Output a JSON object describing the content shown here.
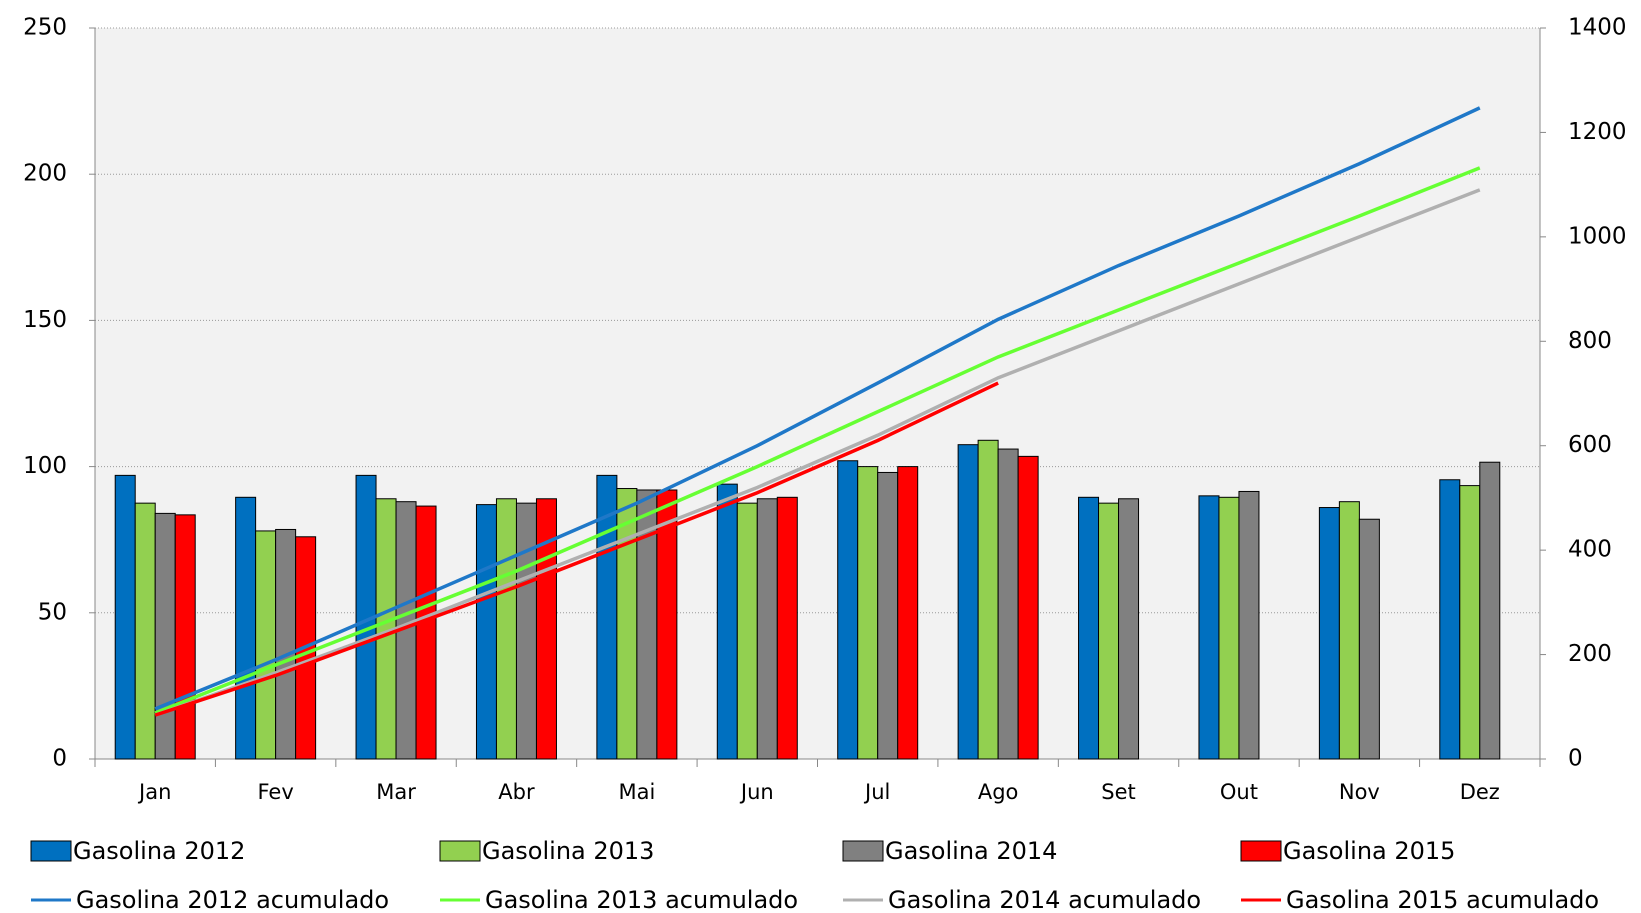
{
  "chart_data": {
    "type": "bar",
    "categories": [
      "Jan",
      "Fev",
      "Mar",
      "Abr",
      "Mai",
      "Jun",
      "Jul",
      "Ago",
      "Set",
      "Out",
      "Nov",
      "Dez"
    ],
    "ylim": [
      0,
      250
    ],
    "yticks": [
      0,
      50,
      100,
      150,
      200,
      250
    ],
    "y2lim": [
      0,
      1400
    ],
    "y2ticks": [
      0,
      200,
      400,
      600,
      800,
      1000,
      1200,
      1400
    ],
    "grid": true,
    "series": [
      {
        "name": "Gasolina 2012",
        "type": "bar",
        "color": "#0070c0",
        "values": [
          97,
          89.5,
          97,
          87,
          97,
          94,
          102,
          107.5,
          89.5,
          90,
          86,
          95.5
        ]
      },
      {
        "name": "Gasolina 2013",
        "type": "bar",
        "color": "#92d050",
        "values": [
          87.5,
          78,
          89,
          89,
          92.5,
          87.5,
          100,
          109,
          87.5,
          89.5,
          88,
          93.5
        ]
      },
      {
        "name": "Gasolina 2014",
        "type": "bar",
        "color": "#808080",
        "values": [
          84,
          78.5,
          88,
          87.5,
          92,
          89,
          98,
          106,
          89,
          91.5,
          82,
          101.5
        ]
      },
      {
        "name": "Gasolina 2015",
        "type": "bar",
        "color": "#ff0000",
        "values": [
          83.5,
          76,
          86.5,
          89,
          92,
          89.5,
          100,
          103.5,
          null,
          null,
          null,
          null
        ]
      },
      {
        "name": "Gasolina 2012 acumulado",
        "type": "line",
        "axis": "y2",
        "color": "#1f78c8",
        "values": [
          96,
          190,
          290,
          390,
          490,
          600,
          720,
          842,
          945,
          1040,
          1140,
          1247
        ]
      },
      {
        "name": "Gasolina 2013 acumulado",
        "type": "line",
        "axis": "y2",
        "color": "#66ff33",
        "values": [
          88,
          180,
          270,
          360,
          460,
          560,
          665,
          770,
          860,
          950,
          1040,
          1132
        ]
      },
      {
        "name": "Gasolina 2014 acumulado",
        "type": "line",
        "axis": "y2",
        "color": "#b0b0b0",
        "values": [
          84,
          165,
          250,
          340,
          430,
          520,
          620,
          730,
          820,
          910,
          1000,
          1090
        ]
      },
      {
        "name": "Gasolina 2015 acumulado",
        "type": "line",
        "axis": "y2",
        "color": "#ff0000",
        "values": [
          84,
          160,
          245,
          330,
          420,
          510,
          610,
          720,
          null,
          null,
          null,
          null
        ]
      }
    ]
  }
}
